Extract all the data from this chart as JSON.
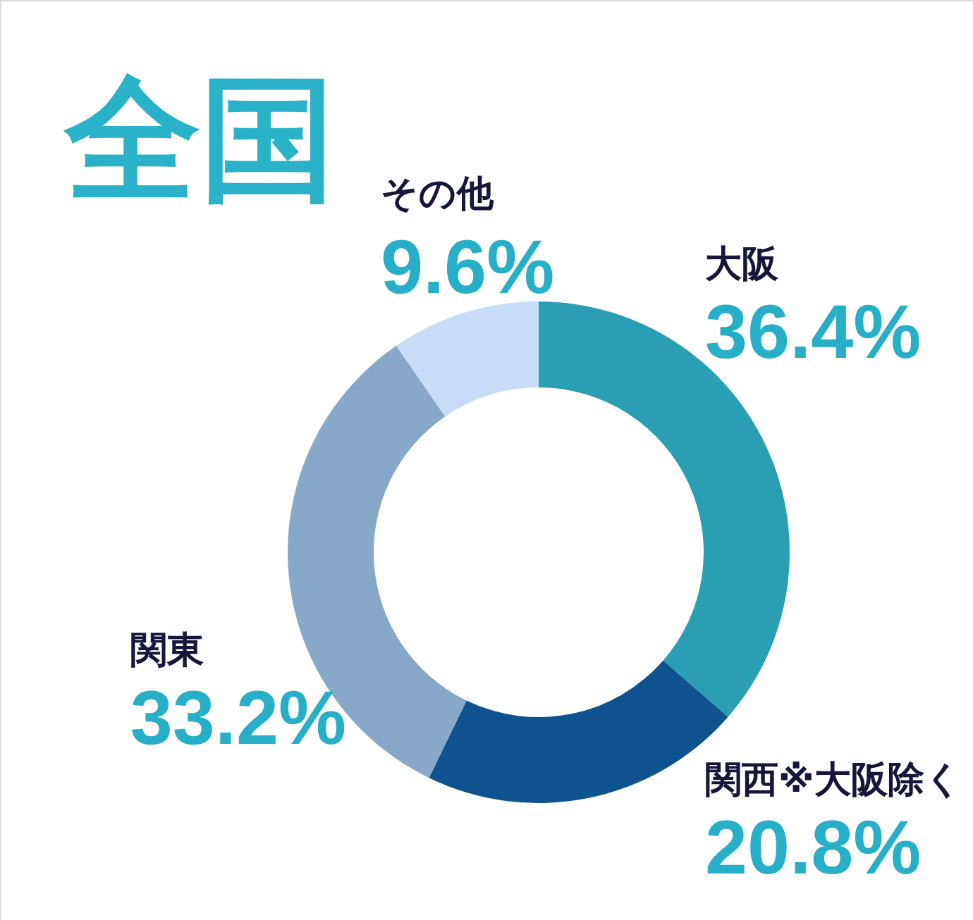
{
  "chart_data": {
    "type": "donut",
    "title": "全国",
    "categories": [
      "大阪",
      "関西※大阪除く",
      "関東",
      "その他"
    ],
    "values": [
      36.4,
      20.8,
      33.2,
      9.6
    ],
    "colors": [
      "#2a9fb3",
      "#0e5290",
      "#87a8c9",
      "#c6dcf8"
    ],
    "value_labels": [
      "36.4%",
      "20.8%",
      "33.2%",
      "9.6%"
    ]
  }
}
